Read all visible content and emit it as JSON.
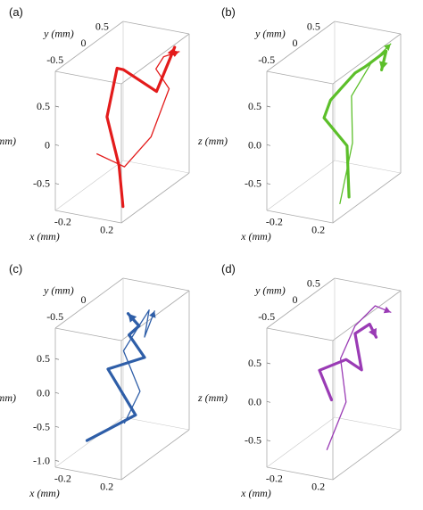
{
  "chart_data": [
    {
      "panel_label": "(a)",
      "type": "line3d",
      "color": "#e31b1b",
      "axes": {
        "x": {
          "label": "x (mm)",
          "ticks": [
            "-0.2",
            "0.2"
          ],
          "range": [
            -0.3,
            0.3
          ]
        },
        "y": {
          "label": "y (mm)",
          "ticks": [
            "0.5",
            "0",
            "-0.5"
          ],
          "range": [
            -0.8,
            0.7
          ]
        },
        "z": {
          "label": "z (mm)",
          "ticks": [
            "0.5",
            "0",
            "-0.5"
          ],
          "range": [
            -0.85,
            0.95
          ]
        }
      },
      "series": [
        {
          "role": "trajectory-thick",
          "points": [
            [
              0.15,
              -0.4,
              -0.85
            ],
            [
              -0.05,
              0.0,
              -0.55
            ],
            [
              -0.2,
              0.1,
              0.0
            ],
            [
              -0.15,
              0.2,
              0.6
            ],
            [
              -0.05,
              0.1,
              0.65
            ],
            [
              0.25,
              0.1,
              0.45
            ],
            [
              0.25,
              0.5,
              0.85
            ]
          ]
        },
        {
          "role": "trajectory-thin",
          "points": [
            [
              -0.25,
              0.0,
              -0.45
            ],
            [
              0.0,
              0.0,
              -0.55
            ],
            [
              0.2,
              0.1,
              -0.15
            ],
            [
              0.2,
              0.5,
              0.3
            ],
            [
              0.1,
              0.45,
              0.55
            ],
            [
              0.15,
              0.5,
              0.7
            ],
            [
              0.25,
              0.6,
              0.75
            ]
          ]
        }
      ]
    },
    {
      "panel_label": "(b)",
      "type": "line3d",
      "color": "#5cbf2a",
      "axes": {
        "x": {
          "label": "x (mm)",
          "ticks": [
            "-0.2",
            "0.2"
          ],
          "range": [
            -0.3,
            0.3
          ]
        },
        "y": {
          "label": "y (mm)",
          "ticks": [
            "0.5",
            "0",
            "-0.5"
          ],
          "range": [
            -0.8,
            0.7
          ]
        },
        "z": {
          "label": "z (mm)",
          "ticks": [
            "0.5",
            "0.0",
            "-0.5"
          ],
          "range": [
            -0.85,
            0.95
          ]
        }
      },
      "series": [
        {
          "role": "trajectory-thick",
          "points": [
            [
              0.2,
              -0.2,
              -0.8
            ],
            [
              0.1,
              0.0,
              -0.25
            ],
            [
              -0.15,
              0.1,
              0.0
            ],
            [
              -0.05,
              0.0,
              0.3
            ],
            [
              0.05,
              0.3,
              0.55
            ],
            [
              0.1,
              0.4,
              0.6
            ],
            [
              0.25,
              0.5,
              0.8
            ],
            [
              0.25,
              0.4,
              0.6
            ]
          ]
        },
        {
          "role": "trajectory-thin",
          "points": [
            [
              0.2,
              -0.4,
              -0.8
            ],
            [
              0.15,
              0.0,
              -0.2
            ],
            [
              0.1,
              0.1,
              0.35
            ],
            [
              0.15,
              0.4,
              0.65
            ],
            [
              0.25,
              0.6,
              0.85
            ]
          ]
        }
      ]
    },
    {
      "panel_label": "(c)",
      "type": "line3d",
      "color": "#2e5ea8",
      "axes": {
        "x": {
          "label": "x (mm)",
          "ticks": [
            "-0.2",
            "0.2"
          ],
          "range": [
            -0.3,
            0.3
          ]
        },
        "y": {
          "label": "y (mm)",
          "ticks": [
            "0",
            "-0.5"
          ],
          "range": [
            -0.8,
            0.7
          ]
        },
        "z": {
          "label": "z (mm)",
          "ticks": [
            "0.5",
            "0.0",
            "-0.5",
            "-1.0"
          ],
          "range": [
            -1.1,
            0.95
          ]
        }
      },
      "series": [
        {
          "role": "trajectory-thick",
          "points": [
            [
              -0.3,
              -0.1,
              -1.05
            ],
            [
              0.1,
              0.0,
              -0.6
            ],
            [
              -0.15,
              0.0,
              0.0
            ],
            [
              0.1,
              0.2,
              0.15
            ],
            [
              0.0,
              0.1,
              0.5
            ],
            [
              0.05,
              0.2,
              0.6
            ],
            [
              -0.05,
              0.2,
              0.75
            ]
          ]
        },
        {
          "role": "trajectory-thin",
          "points": [
            [
              0.0,
              0.0,
              -0.75
            ],
            [
              0.1,
              0.1,
              -0.3
            ],
            [
              -0.05,
              0.1,
              0.25
            ],
            [
              0.05,
              0.2,
              0.6
            ],
            [
              0.1,
              0.3,
              0.8
            ],
            [
              0.1,
              0.2,
              0.45
            ],
            [
              0.15,
              0.3,
              0.8
            ]
          ]
        }
      ]
    },
    {
      "panel_label": "(d)",
      "type": "line3d",
      "color": "#9a3bb5",
      "axes": {
        "x": {
          "label": "x (mm)",
          "ticks": [
            "-0.2",
            "0.2"
          ],
          "range": [
            -0.3,
            0.3
          ]
        },
        "y": {
          "label": "y (mm)",
          "ticks": [
            "0.5",
            "0",
            "-0.5"
          ],
          "range": [
            -0.8,
            0.7
          ]
        },
        "z": {
          "label": "z (mm)",
          "ticks": [
            "0.5",
            "0.0",
            "-0.5"
          ],
          "range": [
            -0.85,
            0.95
          ]
        }
      },
      "series": [
        {
          "role": "trajectory-thick",
          "points": [
            [
              0.0,
              -0.1,
              -0.2
            ],
            [
              -0.15,
              0.0,
              0.1
            ],
            [
              0.05,
              0.1,
              0.25
            ],
            [
              0.15,
              0.2,
              0.1
            ],
            [
              0.05,
              0.3,
              0.5
            ],
            [
              0.1,
              0.5,
              0.55
            ],
            [
              0.2,
              0.4,
              0.45
            ]
          ]
        },
        {
          "role": "trajectory-thin",
          "points": [
            [
              0.0,
              -0.2,
              -0.8
            ],
            [
              0.05,
              0.1,
              -0.3
            ],
            [
              0.0,
              0.1,
              0.25
            ],
            [
              0.05,
              0.3,
              0.6
            ],
            [
              0.15,
              0.5,
              0.8
            ],
            [
              0.25,
              0.6,
              0.7
            ]
          ]
        }
      ]
    }
  ]
}
